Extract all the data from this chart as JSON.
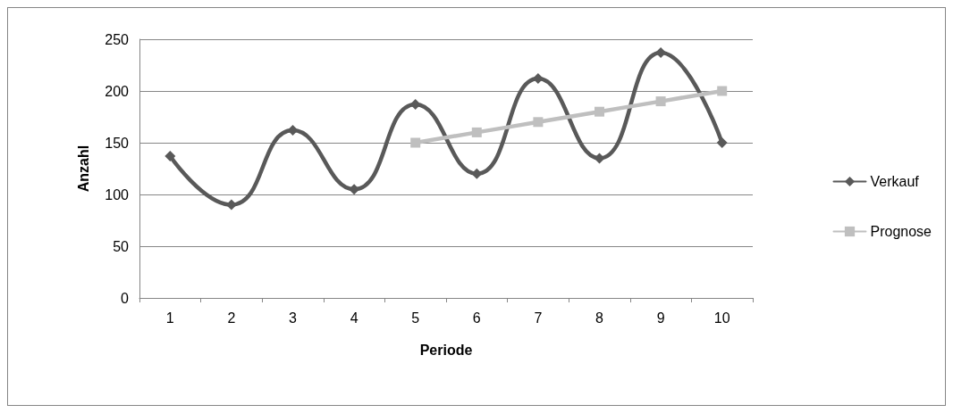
{
  "chart_data": {
    "type": "line",
    "xlabel": "Periode",
    "ylabel": "Anzahl",
    "categories": [
      "1",
      "2",
      "3",
      "4",
      "5",
      "6",
      "7",
      "8",
      "9",
      "10"
    ],
    "series": [
      {
        "name": "Verkauf",
        "color": "#595959",
        "marker": "diamond",
        "values": [
          137,
          90,
          162,
          105,
          187,
          120,
          212,
          135,
          237,
          150
        ]
      },
      {
        "name": "Prognose",
        "color": "#bfbfbf",
        "marker": "square",
        "values": [
          null,
          null,
          null,
          null,
          150,
          160,
          170,
          180,
          190,
          200
        ]
      }
    ],
    "ylim": [
      0,
      250
    ],
    "yticks": [
      0,
      50,
      100,
      150,
      200,
      250
    ],
    "grid": "y",
    "legend": "right"
  }
}
